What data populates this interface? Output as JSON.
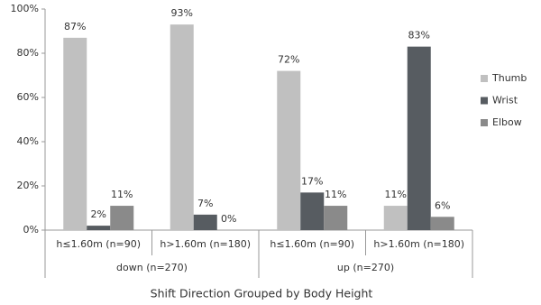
{
  "chart_data": {
    "type": "bar",
    "x_label": "Shift Direction Grouped by Body Height",
    "categories": [
      "h≤1.60m (n=90)",
      "h>1.60m (n=180)",
      "h≤1.60m (n=90)",
      "h>1.60m (n=180)"
    ],
    "groups": [
      "down (n=270)",
      "up (n=270)"
    ],
    "series": [
      {
        "name": "Thumb",
        "color": "#c0c0c0",
        "values": [
          87,
          93,
          72,
          11
        ],
        "value_labels": [
          "87%",
          "93%",
          "72%",
          "11%"
        ]
      },
      {
        "name": "Wrist",
        "color": "#575c61",
        "values": [
          2,
          7,
          17,
          83
        ],
        "value_labels": [
          "2%",
          "7%",
          "17%",
          "83%"
        ]
      },
      {
        "name": "Elbow",
        "color": "#8a8a8a",
        "values": [
          11,
          0,
          11,
          6
        ],
        "value_labels": [
          "11%",
          "0%",
          "11%",
          "6%"
        ]
      }
    ],
    "ylim": [
      0,
      100
    ],
    "yticks": [
      {
        "value": 0,
        "label": "0%"
      },
      {
        "value": 20,
        "label": "20%"
      },
      {
        "value": 40,
        "label": "40%"
      },
      {
        "value": 60,
        "label": "60%"
      },
      {
        "value": 80,
        "label": "80%"
      },
      {
        "value": 100,
        "label": "100%"
      }
    ],
    "grid": false,
    "legend": "right"
  }
}
